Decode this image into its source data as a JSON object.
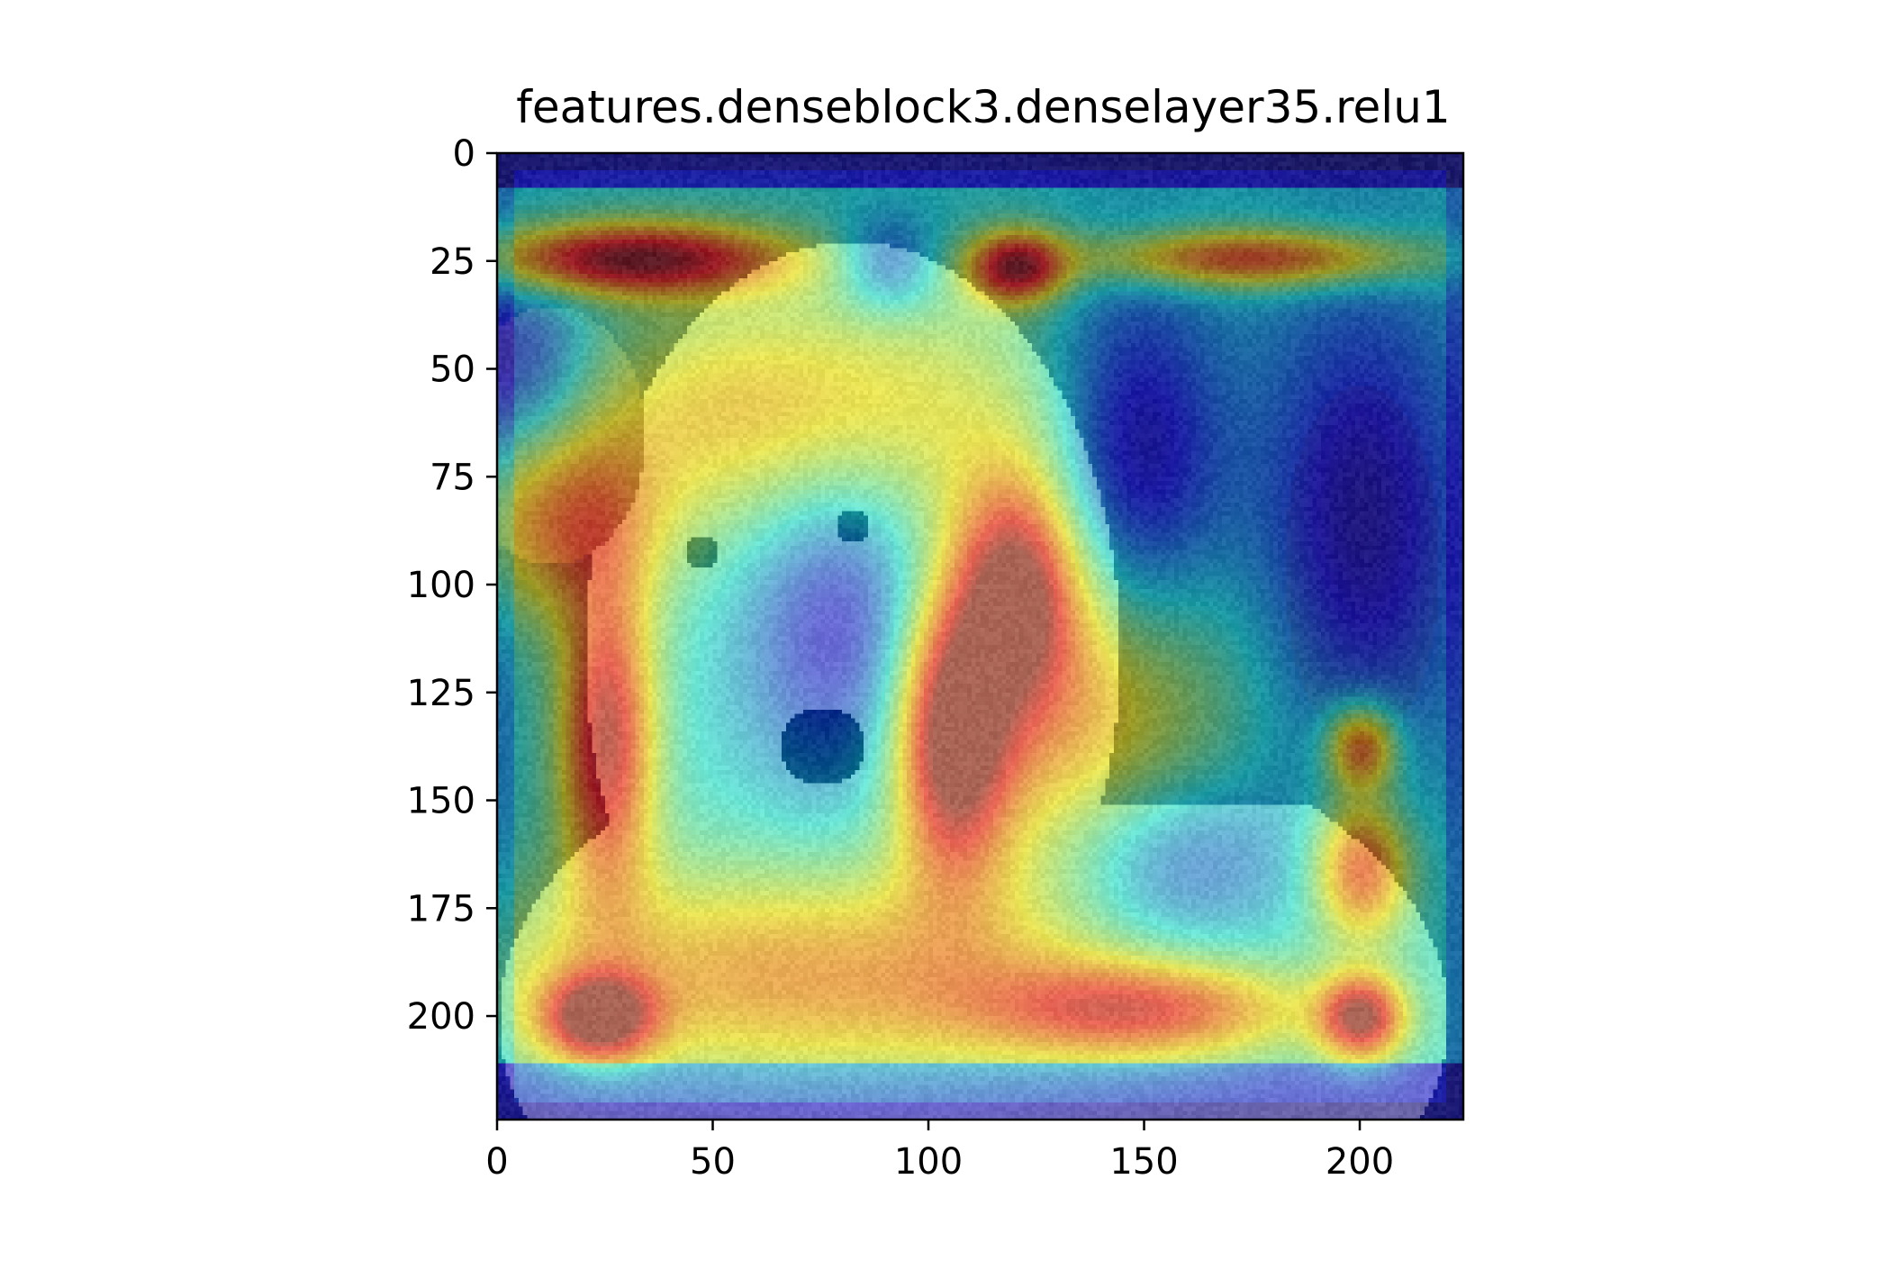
{
  "chart_data": {
    "type": "heatmap",
    "title": "features.denseblock3.denselayer35.relu1",
    "xlabel": "",
    "ylabel": "",
    "image_size": [
      224,
      224
    ],
    "xlim": [
      0,
      224
    ],
    "ylim": [
      224,
      0
    ],
    "x_ticks": [
      0,
      50,
      100,
      150,
      200
    ],
    "y_ticks": [
      0,
      25,
      50,
      75,
      100,
      125,
      150,
      175,
      200
    ],
    "grid": false,
    "colormap": "jet",
    "overlay_alpha": 0.5,
    "base_image": "photo of a light-furred dog's face (overlaid with activation heatmap)",
    "hotspots": [
      {
        "x": 30,
        "y": 24,
        "sx": 26,
        "sy": 6,
        "value": 1.0
      },
      {
        "x": 120,
        "y": 26,
        "sx": 8,
        "sy": 6,
        "value": 0.9
      },
      {
        "x": 175,
        "y": 24,
        "sx": 28,
        "sy": 5,
        "value": 0.8
      },
      {
        "x": 25,
        "y": 135,
        "sx": 8,
        "sy": 26,
        "value": 0.95
      },
      {
        "x": 105,
        "y": 135,
        "sx": 9,
        "sy": 22,
        "value": 0.95
      },
      {
        "x": 120,
        "y": 100,
        "sx": 10,
        "sy": 18,
        "value": 0.85
      },
      {
        "x": 23,
        "y": 200,
        "sx": 9,
        "sy": 7,
        "value": 0.95
      },
      {
        "x": 200,
        "y": 200,
        "sx": 7,
        "sy": 7,
        "value": 0.95
      },
      {
        "x": 200,
        "y": 165,
        "sx": 8,
        "sy": 12,
        "value": 0.8
      },
      {
        "x": 200,
        "y": 137,
        "sx": 6,
        "sy": 7,
        "value": 0.8
      },
      {
        "x": 150,
        "y": 198,
        "sx": 26,
        "sy": 8,
        "value": 0.7
      },
      {
        "x": 130,
        "y": 130,
        "sx": 28,
        "sy": 30,
        "value": 0.6
      },
      {
        "x": 70,
        "y": 190,
        "sx": 55,
        "sy": 18,
        "value": 0.6
      },
      {
        "x": 15,
        "y": 85,
        "sx": 16,
        "sy": 16,
        "value": 0.6
      },
      {
        "x": 70,
        "y": 60,
        "sx": 40,
        "sy": 20,
        "value": 0.55
      }
    ],
    "coldspots": [
      {
        "x": 80,
        "y": 110,
        "sx": 16,
        "sy": 30,
        "value": 0.7
      },
      {
        "x": 148,
        "y": 70,
        "sx": 14,
        "sy": 28,
        "value": 0.8
      },
      {
        "x": 200,
        "y": 85,
        "sx": 18,
        "sy": 40,
        "value": 0.7
      },
      {
        "x": 155,
        "y": 165,
        "sx": 20,
        "sy": 16,
        "value": 0.6
      },
      {
        "x": 5,
        "y": 50,
        "sx": 12,
        "sy": 18,
        "value": 0.6
      },
      {
        "x": 90,
        "y": 25,
        "sx": 8,
        "sy": 8,
        "value": 0.5
      }
    ]
  }
}
